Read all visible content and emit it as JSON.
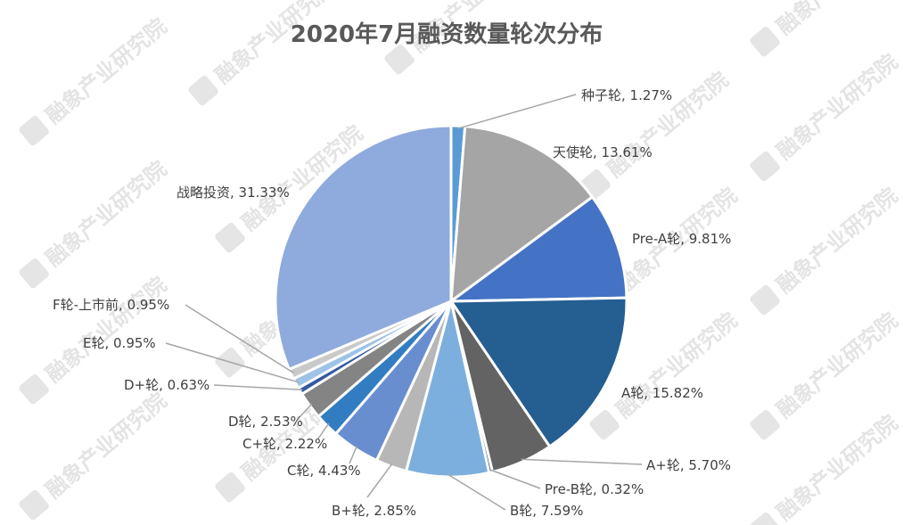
{
  "watermark": "融象产业研究院",
  "chart_data": {
    "type": "pie",
    "title": "2020年7月融资数量轮次分布",
    "categories": [
      "种子轮",
      "天使轮",
      "Pre-A轮",
      "A轮",
      "A+轮",
      "Pre-B轮",
      "B轮",
      "B+轮",
      "C轮",
      "C+轮",
      "D轮",
      "D+轮",
      "E轮",
      "F轮-上市前",
      "战略投资"
    ],
    "values": [
      1.27,
      13.61,
      9.81,
      15.82,
      5.7,
      0.32,
      7.59,
      2.85,
      4.43,
      2.22,
      2.53,
      0.63,
      0.95,
      0.95,
      31.33
    ],
    "labels": [
      "种子轮, 1.27%",
      "天使轮, 13.61%",
      "Pre-A轮, 9.81%",
      "A轮, 15.82%",
      "A+轮, 5.70%",
      "Pre-B轮, 0.32%",
      "B轮, 7.59%",
      "B+轮, 2.85%",
      "C轮, 4.43%",
      "C+轮, 2.22%",
      "D轮, 2.53%",
      "D+轮, 0.63%",
      "E轮, 0.95%",
      "F轮-上市前, 0.95%",
      "战略投资, 31.33%"
    ],
    "colors": [
      "#5b9bd5",
      "#a5a5a5",
      "#4472c4",
      "#255e91",
      "#636363",
      "#264478",
      "#7cafdd",
      "#b7b7b7",
      "#698ed0",
      "#327dc2",
      "#848484",
      "#335aa1",
      "#9dc3e6",
      "#c9c9c9",
      "#8faadc"
    ],
    "legend": "none"
  }
}
